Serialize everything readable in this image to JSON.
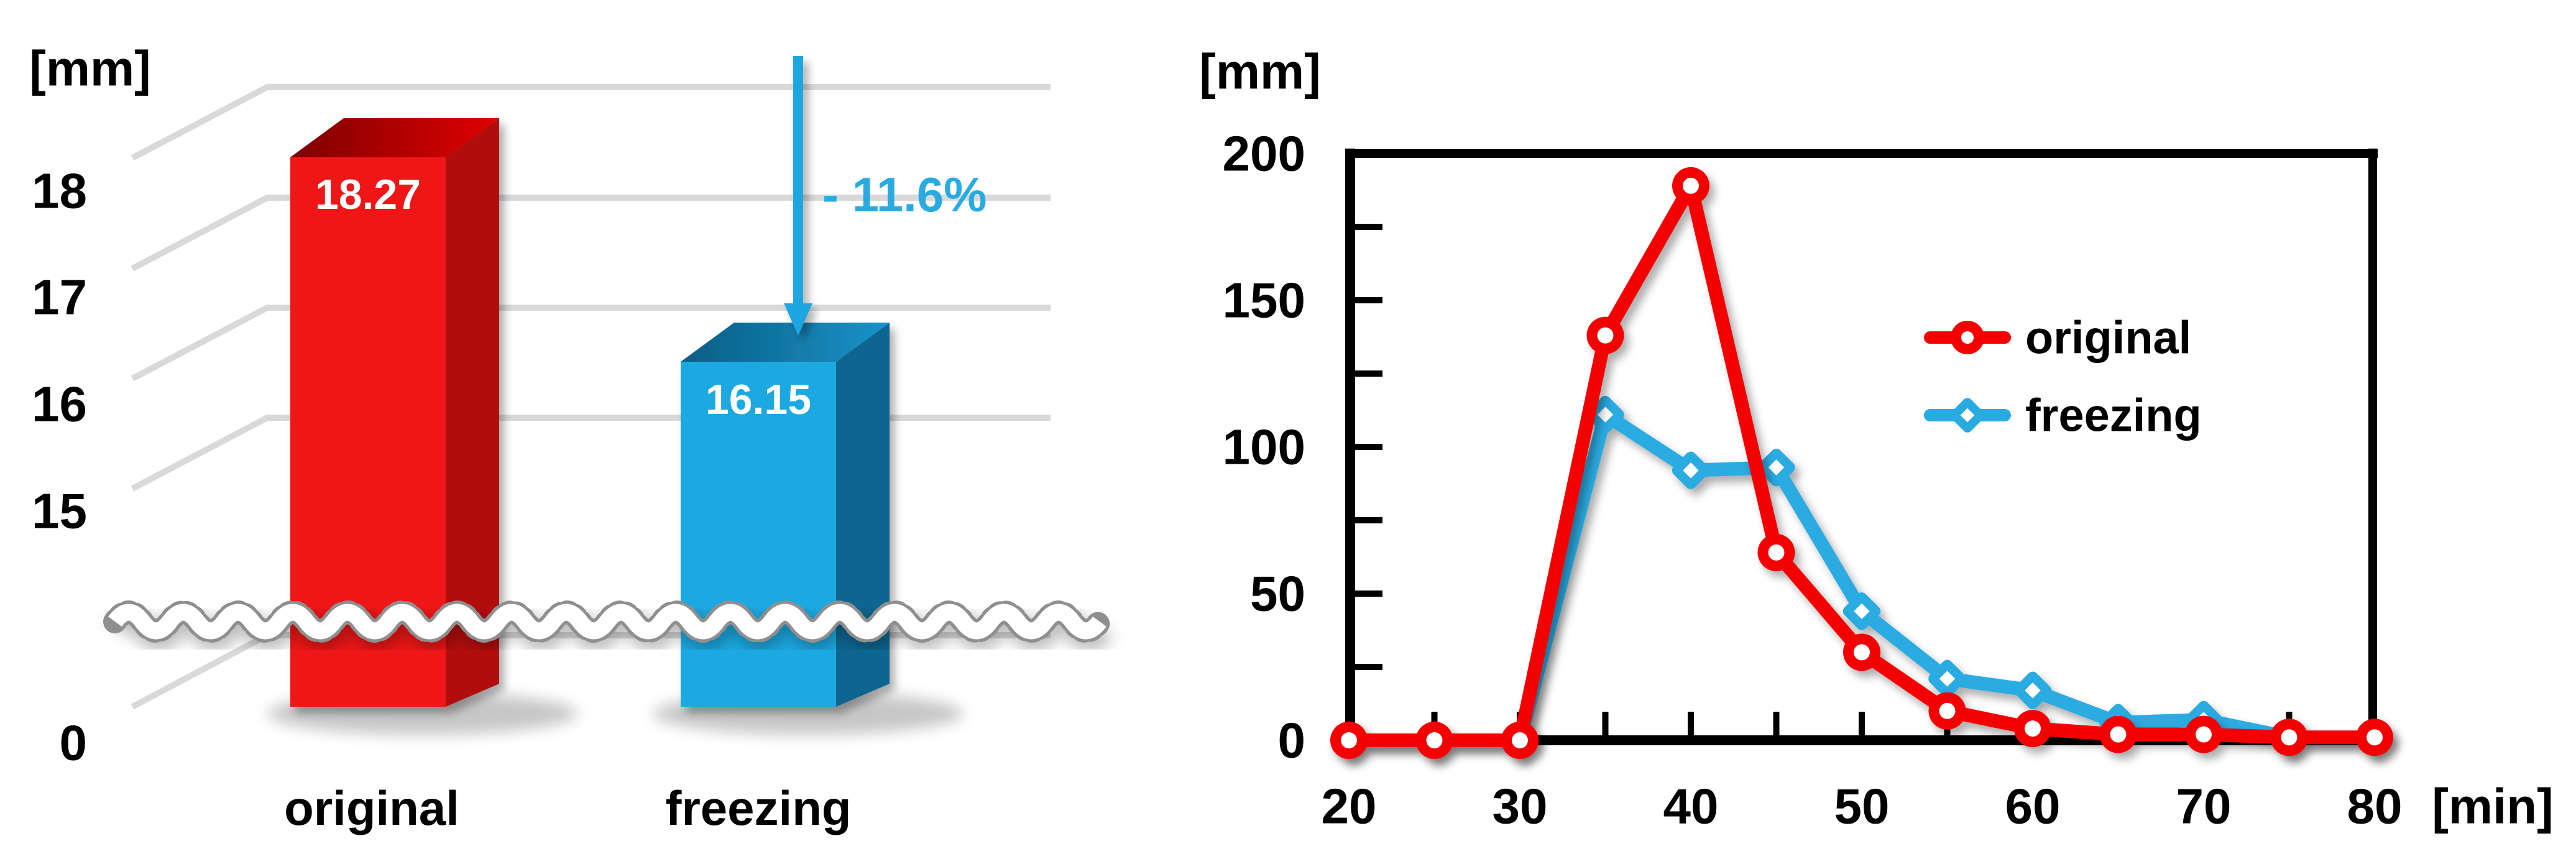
{
  "figure": {
    "description": "Two-panel rainfall-depth comparison figure",
    "unit_mm": "[mm]",
    "unit_min": "[min]"
  },
  "colors": {
    "original_series": "#f40000",
    "freezing_series": "#29abe2",
    "arrow": "#1ba7e0",
    "annotation_text": "#29abe2",
    "grid": "#d9d9d9",
    "frame": "#000000",
    "bar_value_text": "#ffffff",
    "wave_edge": "#8f8f8f",
    "red_bar": {
      "front": "#ee1313",
      "top_dark": "#7d0000",
      "top_light": "#e00505",
      "side": "#b20808"
    },
    "blue_bar": {
      "front": "#1fa9e1",
      "top_dark": "#0d5d84",
      "top_light": "#1693c9",
      "side": "#0c6690"
    }
  },
  "chart_data": [
    {
      "type": "bar",
      "title": "",
      "ylabel": "[mm]",
      "categories": [
        "original",
        "freezing"
      ],
      "values": [
        18.27,
        16.15
      ],
      "value_labels": [
        "18.27",
        "16.15"
      ],
      "annotation": "- 11.6%",
      "y_ticks": [
        18,
        17,
        16,
        15,
        0
      ],
      "y_tick_labels": [
        "18",
        "17",
        "16",
        "15",
        "0"
      ],
      "axis_break": true,
      "style": "3d-bars-with-broken-axis",
      "grid": true
    },
    {
      "type": "line",
      "title": "",
      "xlabel": "[min]",
      "ylabel": "[mm]",
      "x": [
        20,
        25,
        30,
        35,
        40,
        45,
        50,
        55,
        60,
        65,
        70,
        75,
        80
      ],
      "series": [
        {
          "name": "original",
          "marker": "circle",
          "color": "#f40000",
          "values": [
            0,
            0,
            0,
            138,
            189,
            64,
            30,
            10,
            4,
            2,
            2,
            1,
            1
          ]
        },
        {
          "name": "freezing",
          "marker": "diamond",
          "color": "#29abe2",
          "values": [
            0,
            0,
            0,
            111,
            92,
            93,
            44,
            21,
            17,
            6,
            7,
            1,
            1
          ]
        }
      ],
      "xlim": [
        20,
        80
      ],
      "ylim": [
        0,
        200
      ],
      "x_ticks": [
        20,
        30,
        40,
        50,
        60,
        70,
        80
      ],
      "x_tick_labels": [
        "20",
        "30",
        "40",
        "50",
        "60",
        "70",
        "80"
      ],
      "y_ticks": [
        0,
        50,
        100,
        150,
        200
      ],
      "y_tick_labels": [
        "200",
        "150",
        "100",
        "50",
        "0"
      ],
      "x_tick_step_minor": 5,
      "y_tick_step_minor": 25,
      "grid": false,
      "legend_position": "inside upper right"
    }
  ]
}
